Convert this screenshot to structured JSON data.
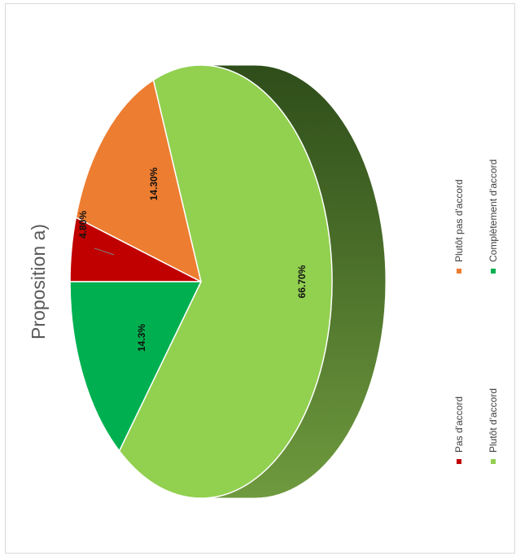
{
  "chart_data": {
    "type": "pie",
    "title": "Proposition a)",
    "three_d": true,
    "orientation": "rotated-90-ccw",
    "legend_position": "right",
    "slices": [
      {
        "label": "Pas d'accord",
        "value": 4.8,
        "display": "4.80%",
        "color": "#c00000"
      },
      {
        "label": "Plutôt pas d'accord",
        "value": 14.3,
        "display": "14.30%",
        "color": "#ed7d31"
      },
      {
        "label": "Plutôt d'accord",
        "value": 66.7,
        "display": "66.70%",
        "color": "#92d050"
      },
      {
        "label": "Complètement d'accord",
        "value": 14.3,
        "display": "14.3%",
        "color": "#00b050"
      }
    ],
    "depth_color": "#4e7a2a"
  }
}
